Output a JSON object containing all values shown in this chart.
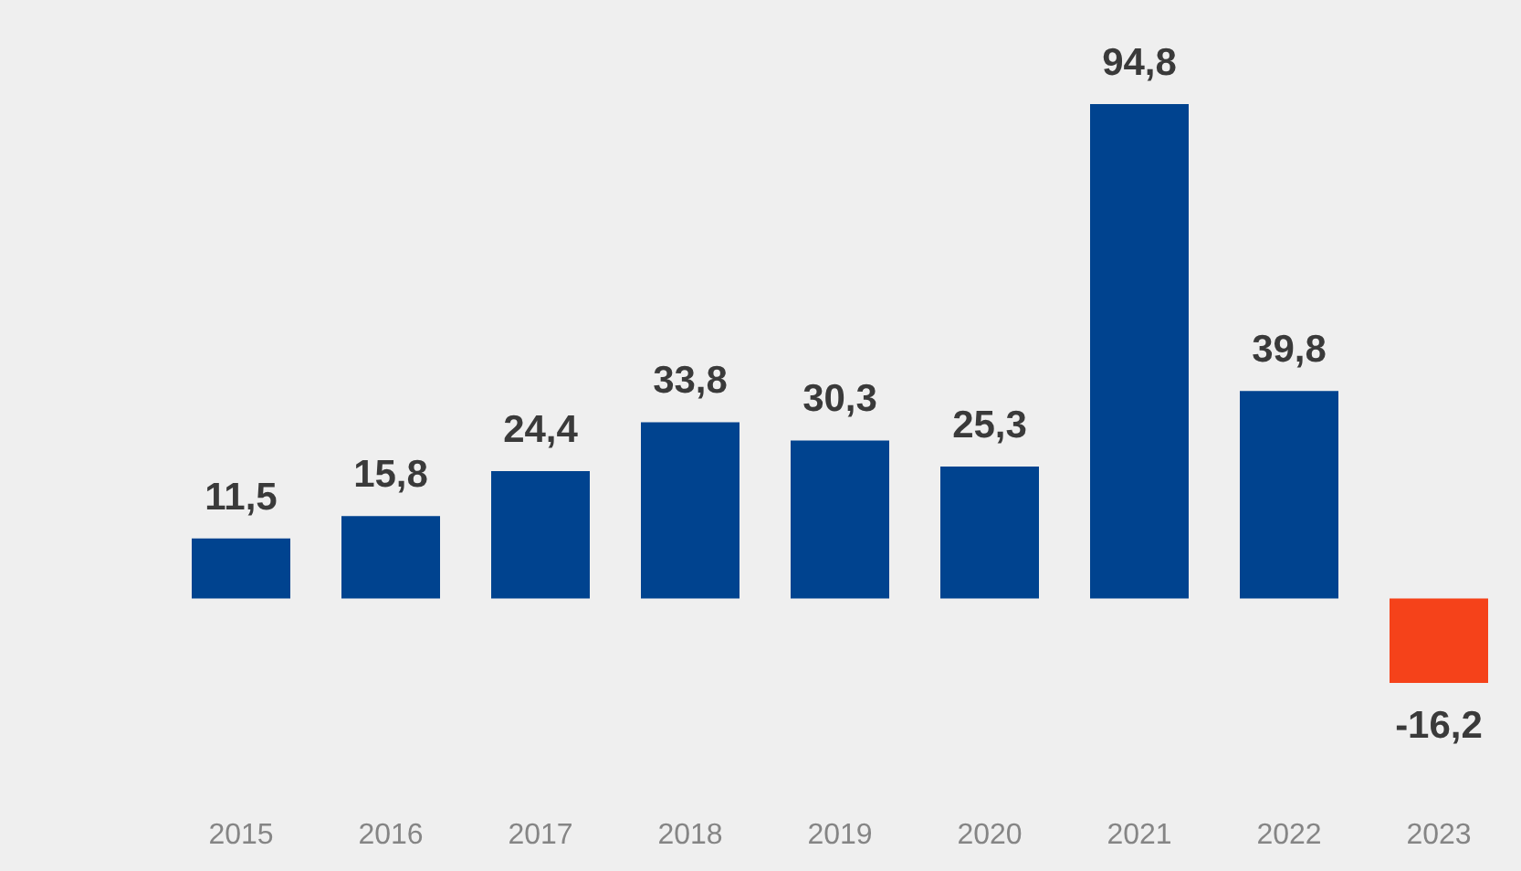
{
  "chart_data": {
    "type": "bar",
    "categories": [
      "2015",
      "2016",
      "2017",
      "2018",
      "2019",
      "2020",
      "2021",
      "2022",
      "2023"
    ],
    "values": [
      11.5,
      15.8,
      24.4,
      33.8,
      30.3,
      25.3,
      94.8,
      39.8,
      -16.2
    ],
    "value_labels": [
      "11,5",
      "15,8",
      "24,4",
      "33,8",
      "30,3",
      "25,3",
      "94,8",
      "39,8",
      "-16,2"
    ],
    "colors": [
      "#00438f",
      "#00438f",
      "#00438f",
      "#00438f",
      "#00438f",
      "#00438f",
      "#00438f",
      "#00438f",
      "#f5421a"
    ],
    "grid": false,
    "legend": false
  }
}
